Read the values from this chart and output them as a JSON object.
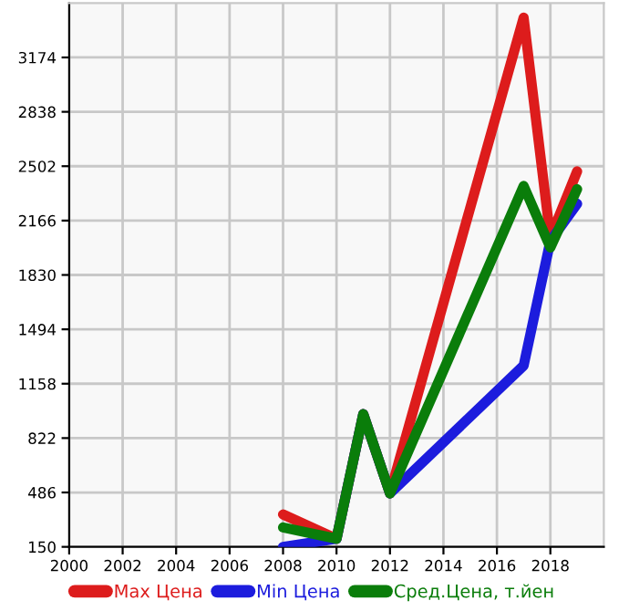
{
  "chart_data": {
    "type": "line",
    "x": [
      2008,
      2010,
      2011,
      2012,
      2017,
      2018,
      2019
    ],
    "series": [
      {
        "name": "Max Цена",
        "color": "#dd1c1c",
        "values": [
          350,
          200,
          970,
          480,
          3420,
          2060,
          2470
        ]
      },
      {
        "name": "Min Цена",
        "color": "#1c1cdd",
        "values": [
          150,
          200,
          970,
          480,
          1270,
          2040,
          2270
        ]
      },
      {
        "name": "Сред.Цена, т.йен",
        "color": "#0a7d0a",
        "values": [
          270,
          200,
          970,
          480,
          2380,
          2000,
          2360
        ]
      }
    ],
    "xlim": [
      2000,
      2020
    ],
    "xticks": [
      2000,
      2002,
      2004,
      2006,
      2008,
      2010,
      2012,
      2014,
      2016,
      2018
    ],
    "ylim": [
      150,
      3510
    ],
    "yticks": [
      150,
      486,
      822,
      1158,
      1494,
      1830,
      2166,
      2502,
      2838,
      3174
    ],
    "grid": true,
    "legend": "bottom",
    "marker": "none",
    "line_style": "solid"
  }
}
